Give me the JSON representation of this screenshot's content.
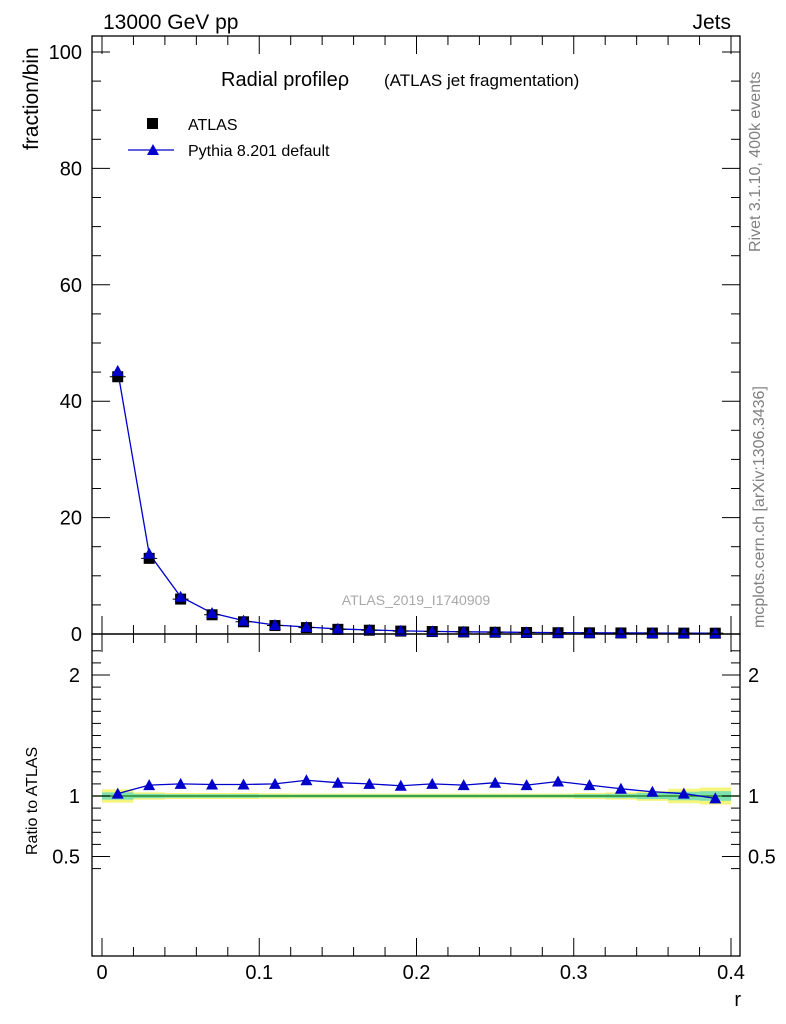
{
  "header": {
    "left": "13000 GeV pp",
    "right": "Jets"
  },
  "side_text": {
    "rivet": "Rivet 3.1.10,  400k events",
    "mcplots": "mcplots.cern.ch [arXiv:1306.3436]"
  },
  "colors": {
    "data": "#000000",
    "mc": "#0000cc",
    "band_yellow": "#f4f57a",
    "band_green": "#7fe0b0",
    "ref_line": "#2a8a2a"
  },
  "chart_data": [
    {
      "type": "scatter",
      "title": "Radial profileρ",
      "subtitle": "(ATLAS jet fragmentation)",
      "analysis_label": "ATLAS_2019_I1740909",
      "ylabel": "fraction/bin",
      "xlabel": "",
      "xlim": [
        0,
        0.4
      ],
      "ylim": [
        0,
        100
      ],
      "yticks": [
        0,
        20,
        40,
        60,
        80,
        100
      ],
      "legend_position": "top-left",
      "x": [
        0.01,
        0.03,
        0.05,
        0.07,
        0.09,
        0.11,
        0.13,
        0.15,
        0.17,
        0.19,
        0.21,
        0.23,
        0.25,
        0.27,
        0.29,
        0.31,
        0.33,
        0.35,
        0.37,
        0.39
      ],
      "series": [
        {
          "name": "ATLAS",
          "marker": "square",
          "values": [
            44.2,
            13.0,
            6.0,
            3.3,
            2.1,
            1.45,
            1.1,
            0.8,
            0.65,
            0.5,
            0.42,
            0.35,
            0.3,
            0.26,
            0.22,
            0.2,
            0.18,
            0.16,
            0.15,
            0.14
          ]
        },
        {
          "name": "Pythia 8.201 default",
          "marker": "triangle",
          "values": [
            45.2,
            13.8,
            6.4,
            3.6,
            2.3,
            1.55,
            1.2,
            0.87,
            0.7,
            0.54,
            0.45,
            0.38,
            0.33,
            0.28,
            0.24,
            0.21,
            0.19,
            0.17,
            0.15,
            0.14
          ]
        }
      ]
    },
    {
      "type": "line",
      "ylabel": "Ratio to ATLAS",
      "xlabel": "r",
      "xlim": [
        0,
        0.4
      ],
      "ylim": [
        0.35,
        2.3
      ],
      "yticks": [
        0.5,
        1,
        2
      ],
      "ytick_labels": [
        "0.5",
        "1",
        "2"
      ],
      "xticks": [
        0,
        0.1,
        0.2,
        0.3,
        0.4
      ],
      "xtick_labels": [
        "0",
        "0.1",
        "0.2",
        "0.3",
        "0.4"
      ],
      "x": [
        0.01,
        0.03,
        0.05,
        0.07,
        0.09,
        0.11,
        0.13,
        0.15,
        0.17,
        0.19,
        0.21,
        0.23,
        0.25,
        0.27,
        0.29,
        0.31,
        0.33,
        0.35,
        0.37,
        0.39
      ],
      "series": [
        {
          "name": "Pythia 8.201 default",
          "values": [
            1.02,
            1.09,
            1.1,
            1.095,
            1.095,
            1.1,
            1.13,
            1.11,
            1.1,
            1.085,
            1.1,
            1.09,
            1.11,
            1.09,
            1.12,
            1.09,
            1.06,
            1.035,
            1.02,
            0.98
          ]
        }
      ],
      "uncertainty_band": {
        "yellow": [
          0.055,
          0.03,
          0.025,
          0.025,
          0.025,
          0.022,
          0.02,
          0.02,
          0.02,
          0.02,
          0.02,
          0.02,
          0.02,
          0.02,
          0.02,
          0.025,
          0.03,
          0.04,
          0.06,
          0.07
        ],
        "green": [
          0.03,
          0.018,
          0.015,
          0.015,
          0.015,
          0.012,
          0.012,
          0.012,
          0.012,
          0.012,
          0.012,
          0.012,
          0.012,
          0.012,
          0.012,
          0.015,
          0.018,
          0.025,
          0.035,
          0.04
        ]
      }
    }
  ]
}
